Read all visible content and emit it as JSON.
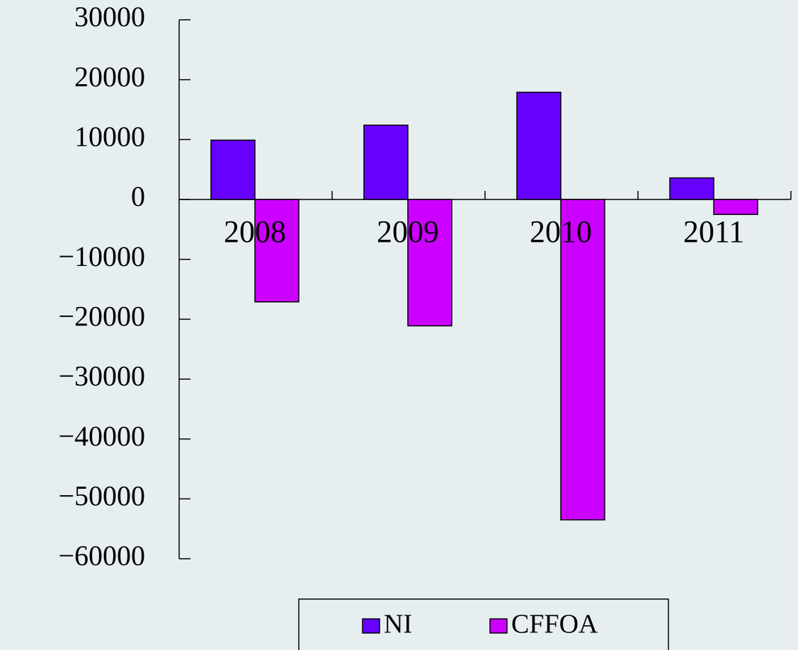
{
  "chart_data": {
    "type": "bar",
    "categories": [
      "2008",
      "2009",
      "2010",
      "2011"
    ],
    "series": [
      {
        "name": "NI",
        "color": "#6600ff",
        "values": [
          9900,
          12400,
          17900,
          3600
        ]
      },
      {
        "name": "CFFOA",
        "color": "#cc00ff",
        "values": [
          -17100,
          -21100,
          -53500,
          -2500
        ]
      }
    ],
    "ylim": [
      -60000,
      30000
    ],
    "yticks": [
      {
        "value": -60000,
        "label": "−60000"
      },
      {
        "value": -50000,
        "label": "−50000"
      },
      {
        "value": -40000,
        "label": "−40000"
      },
      {
        "value": -30000,
        "label": "−30000"
      },
      {
        "value": -20000,
        "label": "−20000"
      },
      {
        "value": -10000,
        "label": "−10000"
      },
      0,
      10000,
      20000,
      30000
    ],
    "legend": "bottom"
  }
}
